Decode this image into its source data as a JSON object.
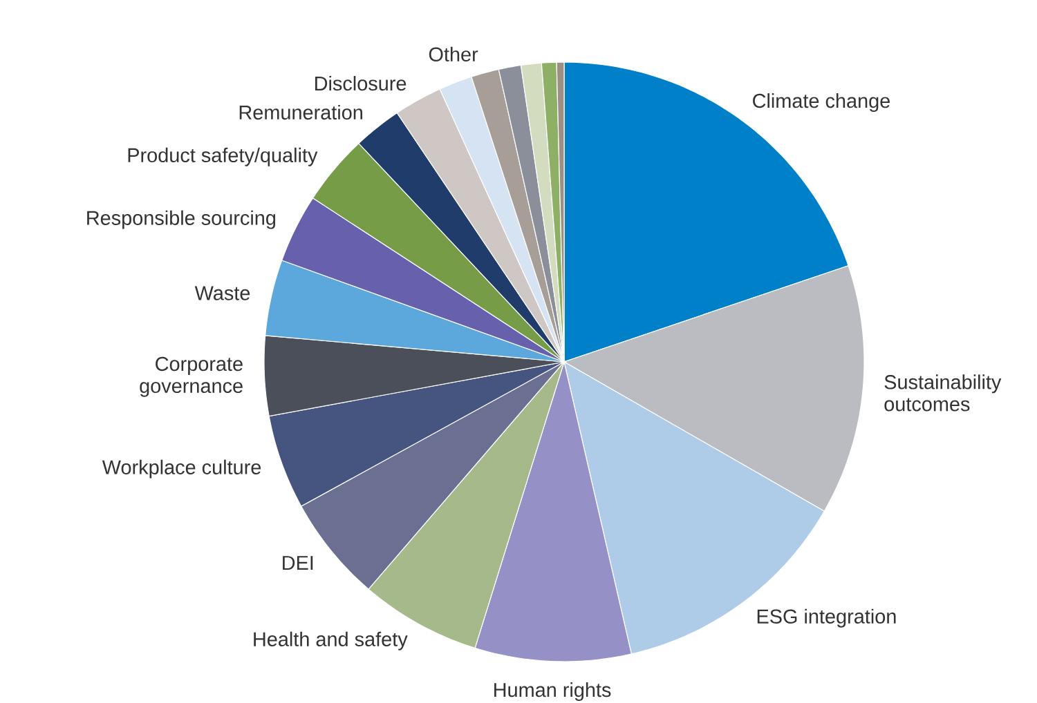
{
  "chart_data": {
    "type": "pie",
    "categories": [
      "Climate change",
      "Sustainability outcomes",
      "ESG integration",
      "Human rights",
      "Health and safety",
      "DEI",
      "Workplace culture",
      "Corporate governance",
      "Waste",
      "Responsible sourcing",
      "Product safety/quality",
      "Remuneration",
      "Disclosure",
      null,
      "Other",
      null,
      null,
      null,
      null
    ],
    "values": [
      19.8,
      13.5,
      13.1,
      8.4,
      6.5,
      5.7,
      5.1,
      4.3,
      4.1,
      3.7,
      3.8,
      2.6,
      2.6,
      1.8,
      1.5,
      1.2,
      1.1,
      0.8,
      0.4
    ],
    "colors": [
      "#0080c8",
      "#bbbcc1",
      "#aecce8",
      "#9590c6",
      "#a6b98a",
      "#6b7093",
      "#465580",
      "#4b4f5a",
      "#5ca8dc",
      "#6760ad",
      "#779c48",
      "#1f3c6a",
      "#cfc7c3",
      "#d5e3f3",
      "#a69e97",
      "#8a8f99",
      "#d4dcc0",
      "#8eaf66",
      "#9b8f86"
    ]
  }
}
